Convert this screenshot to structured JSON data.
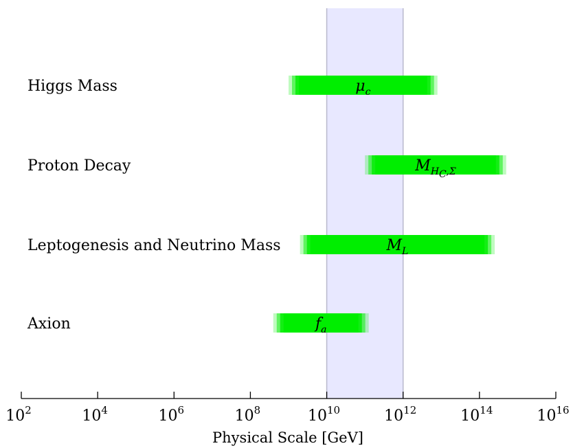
{
  "chart_data": {
    "type": "bar",
    "orientation": "horizontal-range",
    "xlabel": "Physical Scale [GeV]",
    "x_scale": "log10",
    "xlim": [
      2,
      16
    ],
    "x_ticks": [
      {
        "base": "10",
        "exp": "2"
      },
      {
        "base": "10",
        "exp": "4"
      },
      {
        "base": "10",
        "exp": "6"
      },
      {
        "base": "10",
        "exp": "8"
      },
      {
        "base": "10",
        "exp": "10"
      },
      {
        "base": "10",
        "exp": "12"
      },
      {
        "base": "10",
        "exp": "14"
      },
      {
        "base": "10",
        "exp": "16"
      }
    ],
    "highlight_band": {
      "from_exp": 10,
      "to_exp": 12,
      "color": "#e8e8ff"
    },
    "bar_color": "#00ee00",
    "categories": [
      "Higgs Mass",
      "Proton Decay",
      "Leptogenesis and Neutrino Mass",
      "Axion"
    ],
    "bars": [
      {
        "category": "Higgs Mass",
        "from_exp": 9.0,
        "to_exp": 12.9,
        "label": "μ",
        "label_sub": "c"
      },
      {
        "category": "Proton Decay",
        "from_exp": 11.0,
        "to_exp": 14.7,
        "label": "M",
        "label_sub": "H",
        "label_subsub": "C",
        "label_sub_tail": ",Σ"
      },
      {
        "category": "Leptogenesis and Neutrino Mass",
        "from_exp": 9.3,
        "to_exp": 14.4,
        "label": "M",
        "label_sub": "L"
      },
      {
        "category": "Axion",
        "from_exp": 8.6,
        "to_exp": 11.1,
        "label": "f",
        "label_sub": "a"
      }
    ]
  }
}
